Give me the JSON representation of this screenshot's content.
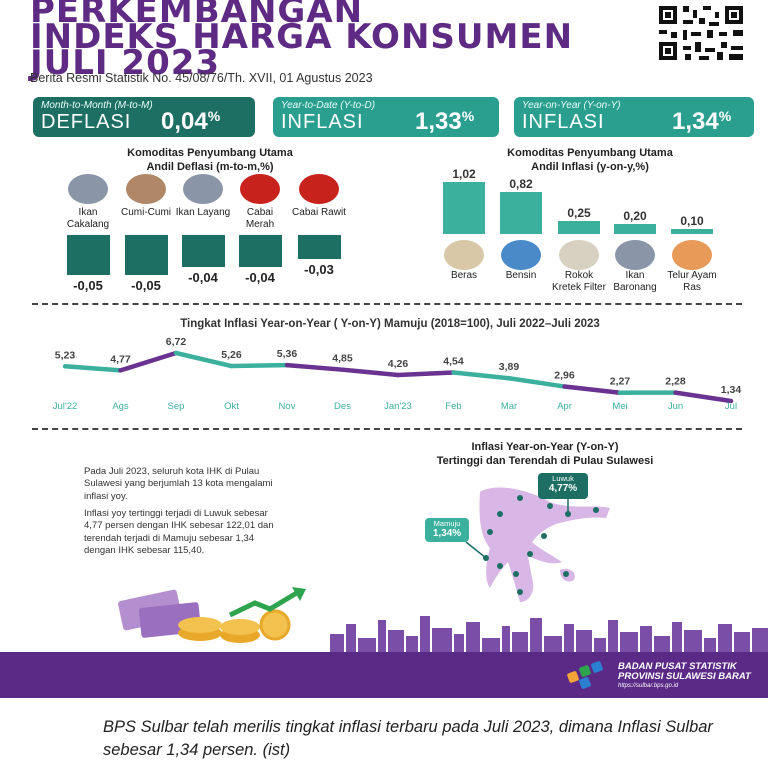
{
  "header": {
    "title_line1": "PERKEMBANGAN",
    "title_line2": "INDEKS HARGA KONSUMEN",
    "title_line3": "JULI 2023",
    "subtitle": "Berita Resmi Statistik No. 45/08/76/Th. XVII, 01 Agustus 2023"
  },
  "summary": {
    "mtm": {
      "label": "Month-to-Month (M-to-M)",
      "word": "DEFLASI",
      "value": "0,04",
      "pct": "%"
    },
    "ytd": {
      "label": "Year-to-Date (Y-to-D)",
      "word": "INFLASI",
      "value": "1,33",
      "pct": "%"
    },
    "yoy": {
      "label": "Year-on-Year (Y-on-Y)",
      "word": "INFLASI",
      "value": "1,34",
      "pct": "%"
    }
  },
  "deflation": {
    "heading_1": "Komoditas Penyumbang Utama",
    "heading_2": "Andil Deflasi (m-to-m,%)",
    "items": [
      {
        "label": "Ikan Cakalang",
        "value": "-0,05",
        "num": -0.05,
        "icon": "fish-icon"
      },
      {
        "label": "Cumi-Cumi",
        "value": "-0,05",
        "num": -0.05,
        "icon": "squid-icon"
      },
      {
        "label": "Ikan Layang",
        "value": "-0,04",
        "num": -0.04,
        "icon": "fish-icon"
      },
      {
        "label": "Cabai Merah",
        "value": "-0,04",
        "num": -0.04,
        "icon": "chili-icon"
      },
      {
        "label": "Cabai Rawit",
        "value": "-0,03",
        "num": -0.03,
        "icon": "chili-icon"
      }
    ]
  },
  "inflation": {
    "heading_1": "Komoditas Penyumbang Utama",
    "heading_2": "Andil Inflasi (y-on-y,%)",
    "items": [
      {
        "label": "Beras",
        "value": "1,02",
        "num": 1.02,
        "icon": "rice-icon"
      },
      {
        "label": "Bensin",
        "value": "0,82",
        "num": 0.82,
        "icon": "gas-pump-icon"
      },
      {
        "label": "Rokok Kretek Filter",
        "value": "0,25",
        "num": 0.25,
        "icon": "cigarette-icon"
      },
      {
        "label": "Ikan Baronang",
        "value": "0,20",
        "num": 0.2,
        "icon": "fish-icon"
      },
      {
        "label": "Telur Ayam Ras",
        "value": "0,10",
        "num": 0.1,
        "icon": "egg-icon"
      }
    ]
  },
  "chart_data": {
    "type": "line",
    "title": "Tingkat Inflasi Year-on-Year ( Y-on-Y) Mamuju (2018=100), Juli 2022–Juli 2023",
    "categories": [
      "Jul'22",
      "Ags",
      "Sep",
      "Okt",
      "Nov",
      "Des",
      "Jan'23",
      "Feb",
      "Mar",
      "Apr",
      "Mei",
      "Jun",
      "Jul"
    ],
    "value_labels": [
      "5,23",
      "4,77",
      "6,72",
      "5,26",
      "5,36",
      "4,85",
      "4,26",
      "4,54",
      "3,89",
      "2,96",
      "2,27",
      "2,28",
      "1,34"
    ],
    "values": [
      5.23,
      4.77,
      6.72,
      5.26,
      5.36,
      4.85,
      4.26,
      4.54,
      3.89,
      2.96,
      2.27,
      2.28,
      1.34
    ],
    "colors": {
      "teal": "#3bb09d",
      "purple": "#6b3391"
    }
  },
  "map": {
    "heading_1": "Inflasi Year-on-Year (Y-on-Y)",
    "heading_2": "Tertinggi dan Terendah di Pulau Sulawesi",
    "high": {
      "city": "Luwuk",
      "value": "4,77%"
    },
    "low": {
      "city": "Mamuju",
      "value": "1,34%"
    },
    "para_1": "Pada Juli 2023, seluruh kota IHK di Pulau Sulawesi yang berjumlah 13 kota mengalami inflasi yoy.",
    "para_2": "Inflasi yoy tertinggi terjadi di Luwuk sebesar 4,77 persen dengan IHK sebesar 122,01 dan terendah terjadi di Mamuju sebesar 1,34 dengan IHK sebesar 115,40."
  },
  "footer": {
    "org_1": "BADAN PUSAT STATISTIK",
    "org_2": "PROVINSI SULAWESI BARAT",
    "url": "https://sulbar.bps.go.id"
  },
  "caption": "BPS Sulbar telah merilis tingkat inflasi terbaru pada Juli 2023, dimana Inflasi Sulbar sebesar 1,34 persen. (ist)"
}
